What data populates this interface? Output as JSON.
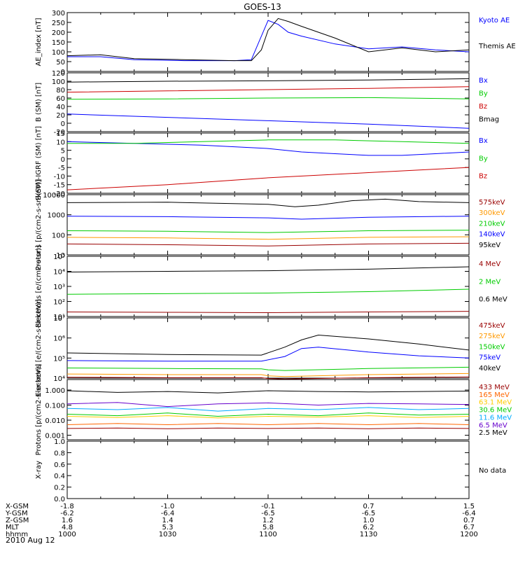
{
  "figure": {
    "title": "GOES-13",
    "date": "2010 Aug 12",
    "time_labels": [
      "1000",
      "1030",
      "1100",
      "1130",
      "1200"
    ]
  },
  "ephemeris": {
    "rows": [
      {
        "label": "X-GSM",
        "values": [
          "-1.8",
          "-1.0",
          "-0.1",
          "0.7",
          "1.5"
        ]
      },
      {
        "label": "Y-GSM",
        "values": [
          "-6.2",
          "-6.4",
          "-6.5",
          "-6.5",
          "-6.4"
        ]
      },
      {
        "label": "Z-GSM",
        "values": [
          "1.6",
          "1.4",
          "1.2",
          "1.0",
          "0.7"
        ]
      },
      {
        "label": "MLT",
        "values": [
          "4.8",
          "5.3",
          "5.8",
          "6.2",
          "6.7"
        ]
      },
      {
        "label": "hhmm",
        "values": [
          "1000",
          "1030",
          "1100",
          "1130",
          "1200"
        ]
      }
    ]
  },
  "chart_data": [
    {
      "type": "line",
      "ylabel": "AE_index [nT]",
      "ylim": [
        0,
        300
      ],
      "y_scale": "linear",
      "y_ticks": [
        {
          "v": 0,
          "t": "0"
        },
        {
          "v": 50,
          "t": "50"
        },
        {
          "v": 100,
          "t": "100"
        },
        {
          "v": 150,
          "t": "150"
        },
        {
          "v": 200,
          "t": "200"
        },
        {
          "v": 250,
          "t": "250"
        },
        {
          "v": 300,
          "t": "300"
        }
      ],
      "legend": [
        {
          "name": "Kyoto AE",
          "color": "#0000ff"
        },
        {
          "name": "Themis AE",
          "color": "#000000"
        }
      ],
      "series": [
        {
          "name": "Kyoto AE",
          "color": "#0000ff",
          "x": [
            1000,
            1010,
            1020,
            1035,
            1050,
            1055,
            1058,
            1100,
            1103,
            1106,
            1110,
            1120,
            1130,
            1140,
            1150,
            1200
          ],
          "y": [
            75,
            75,
            60,
            55,
            55,
            60,
            180,
            260,
            240,
            200,
            180,
            140,
            115,
            125,
            110,
            100
          ]
        },
        {
          "name": "Themis AE",
          "color": "#000000",
          "x": [
            1000,
            1010,
            1020,
            1035,
            1050,
            1055,
            1058,
            1100,
            1103,
            1106,
            1110,
            1120,
            1130,
            1140,
            1150,
            1200
          ],
          "y": [
            80,
            85,
            65,
            60,
            55,
            55,
            110,
            210,
            270,
            255,
            230,
            170,
            100,
            120,
            100,
            110
          ]
        }
      ]
    },
    {
      "type": "line",
      "ylabel": "B (SM) [nT]",
      "ylim": [
        -20,
        120
      ],
      "y_scale": "linear",
      "y_ticks": [
        {
          "v": -20,
          "t": "-20"
        },
        {
          "v": 0,
          "t": "0"
        },
        {
          "v": 20,
          "t": "20"
        },
        {
          "v": 40,
          "t": "40"
        },
        {
          "v": 60,
          "t": "60"
        },
        {
          "v": 80,
          "t": "80"
        },
        {
          "v": 100,
          "t": "100"
        },
        {
          "v": 120,
          "t": "120"
        }
      ],
      "legend": [
        {
          "name": "Bx",
          "color": "#0000ff"
        },
        {
          "name": "By",
          "color": "#00cc00"
        },
        {
          "name": "Bz",
          "color": "#cc0000"
        },
        {
          "name": "Bmag",
          "color": "#000000"
        }
      ],
      "series": [
        {
          "name": "Bx",
          "color": "#0000ff",
          "x": [
            1000,
            1030,
            1100,
            1130,
            1200
          ],
          "y": [
            22,
            14,
            6,
            -2,
            -12
          ]
        },
        {
          "name": "By",
          "color": "#00cc00",
          "x": [
            1000,
            1030,
            1100,
            1130,
            1200
          ],
          "y": [
            57,
            58,
            60,
            61,
            58
          ]
        },
        {
          "name": "Bz",
          "color": "#cc0000",
          "x": [
            1000,
            1030,
            1100,
            1130,
            1200
          ],
          "y": [
            74,
            77,
            80,
            83,
            87
          ]
        },
        {
          "name": "Bmag",
          "color": "#000000",
          "x": [
            1000,
            1030,
            1100,
            1130,
            1200
          ],
          "y": [
            98,
            100,
            101,
            103,
            106
          ]
        }
      ]
    },
    {
      "type": "line",
      "ylabel": "B(SM)-IGRF (SM) [nT]",
      "ylim": [
        -20,
        15
      ],
      "y_scale": "linear",
      "y_ticks": [
        {
          "v": -20,
          "t": "-20"
        },
        {
          "v": -15,
          "t": "-15"
        },
        {
          "v": -10,
          "t": "-10"
        },
        {
          "v": -5,
          "t": "-5"
        },
        {
          "v": 0,
          "t": "0"
        },
        {
          "v": 5,
          "t": "5"
        },
        {
          "v": 10,
          "t": "10"
        },
        {
          "v": 15,
          "t": "15"
        }
      ],
      "legend": [
        {
          "name": "Bx",
          "color": "#0000ff"
        },
        {
          "name": "By",
          "color": "#00cc00"
        },
        {
          "name": "Bz",
          "color": "#cc0000"
        }
      ],
      "series": [
        {
          "name": "Bx",
          "color": "#0000ff",
          "x": [
            1000,
            1020,
            1040,
            1100,
            1110,
            1120,
            1130,
            1140,
            1150,
            1200
          ],
          "y": [
            10,
            9,
            8,
            6,
            4,
            3,
            2,
            2,
            3,
            4
          ]
        },
        {
          "name": "By",
          "color": "#00cc00",
          "x": [
            1000,
            1020,
            1040,
            1100,
            1120,
            1140,
            1200
          ],
          "y": [
            9,
            9,
            10,
            11,
            11,
            10,
            9
          ]
        },
        {
          "name": "Bz",
          "color": "#cc0000",
          "x": [
            1000,
            1030,
            1100,
            1130,
            1200
          ],
          "y": [
            -18,
            -15,
            -11,
            -8,
            -5
          ]
        }
      ]
    },
    {
      "type": "line",
      "ylabel": "Protons [p/(cm2-s-sr-keV)]",
      "ylim": [
        10,
        10000
      ],
      "y_scale": "log",
      "y_ticks": [
        {
          "v": 10,
          "t": "10"
        },
        {
          "v": 100,
          "t": "100"
        },
        {
          "v": 1000,
          "t": "1000"
        },
        {
          "v": 10000,
          "t": "10000"
        }
      ],
      "legend": [
        {
          "name": "575keV",
          "color": "#990000"
        },
        {
          "name": "300keV",
          "color": "#ff9900"
        },
        {
          "name": "210keV",
          "color": "#00cc00"
        },
        {
          "name": "140keV",
          "color": "#0000ff"
        },
        {
          "name": "95keV",
          "color": "#000000"
        }
      ],
      "series": [
        {
          "name": "95keV",
          "color": "#000000",
          "x": [
            1000,
            1030,
            1100,
            1108,
            1115,
            1125,
            1135,
            1145,
            1200
          ],
          "y": [
            4000,
            4200,
            3300,
            2500,
            3000,
            5000,
            6000,
            4500,
            4000
          ]
        },
        {
          "name": "140keV",
          "color": "#0000ff",
          "x": [
            1000,
            1030,
            1100,
            1110,
            1130,
            1200
          ],
          "y": [
            850,
            800,
            700,
            600,
            750,
            850
          ]
        },
        {
          "name": "210keV",
          "color": "#00cc00",
          "x": [
            1000,
            1030,
            1100,
            1130,
            1200
          ],
          "y": [
            160,
            150,
            130,
            160,
            170
          ]
        },
        {
          "name": "300keV",
          "color": "#ff9900",
          "x": [
            1000,
            1030,
            1100,
            1130,
            1200
          ],
          "y": [
            75,
            70,
            60,
            75,
            80
          ]
        },
        {
          "name": "575keV",
          "color": "#990000",
          "x": [
            1000,
            1030,
            1100,
            1130,
            1200
          ],
          "y": [
            35,
            32,
            28,
            35,
            38
          ]
        }
      ]
    },
    {
      "type": "line",
      "ylabel": "Electrons [e/(cm2-s-sr)]",
      "ylim": [
        10,
        100000
      ],
      "y_scale": "log",
      "y_ticks": [
        {
          "v": 10,
          "t": "10¹"
        },
        {
          "v": 100,
          "t": "10²"
        },
        {
          "v": 1000,
          "t": "10³"
        },
        {
          "v": 10000,
          "t": "10⁴"
        },
        {
          "v": 100000,
          "t": "10⁵"
        }
      ],
      "legend": [
        {
          "name": "4 MeV",
          "color": "#990000"
        },
        {
          "name": "2 MeV",
          "color": "#00cc00"
        },
        {
          "name": "0.6 MeV",
          "color": "#000000"
        }
      ],
      "series": [
        {
          "name": "0.6 MeV",
          "color": "#000000",
          "x": [
            1000,
            1030,
            1100,
            1130,
            1200
          ],
          "y": [
            9000,
            10000,
            11000,
            14000,
            20000
          ]
        },
        {
          "name": "2 MeV",
          "color": "#00cc00",
          "x": [
            1000,
            1030,
            1100,
            1130,
            1200
          ],
          "y": [
            300,
            330,
            360,
            450,
            650
          ]
        },
        {
          "name": "4 MeV",
          "color": "#990000",
          "x": [
            1000,
            1030,
            1100,
            1130,
            1200
          ],
          "y": [
            20,
            19,
            18,
            20,
            22
          ]
        }
      ]
    },
    {
      "type": "line",
      "ylabel": "Electrons [e/(cm2-s-sr-keV)]",
      "ylim": [
        10000,
        10000000
      ],
      "y_scale": "log",
      "y_ticks": [
        {
          "v": 10000,
          "t": "10⁴"
        },
        {
          "v": 100000,
          "t": "10⁵"
        },
        {
          "v": 1000000,
          "t": "10⁶"
        },
        {
          "v": 10000000,
          "t": "10⁷"
        }
      ],
      "legend": [
        {
          "name": "475keV",
          "color": "#990000"
        },
        {
          "name": "275keV",
          "color": "#ff9900"
        },
        {
          "name": "150keV",
          "color": "#00cc00"
        },
        {
          "name": "75keV",
          "color": "#0000ff"
        },
        {
          "name": "40keV",
          "color": "#000000"
        }
      ],
      "series": [
        {
          "name": "40keV",
          "color": "#000000",
          "x": [
            1000,
            1030,
            1058,
            1105,
            1110,
            1115,
            1130,
            1145,
            1200
          ],
          "y": [
            180000,
            150000,
            140000,
            350000,
            800000,
            1400000,
            900000,
            500000,
            250000
          ]
        },
        {
          "name": "75keV",
          "color": "#0000ff",
          "x": [
            1000,
            1030,
            1058,
            1105,
            1110,
            1115,
            1130,
            1145,
            1200
          ],
          "y": [
            75000,
            70000,
            70000,
            120000,
            300000,
            350000,
            200000,
            130000,
            100000
          ]
        },
        {
          "name": "150keV",
          "color": "#00cc00",
          "x": [
            1000,
            1030,
            1058,
            1100,
            1105,
            1130,
            1200
          ],
          "y": [
            32000,
            30000,
            29000,
            26000,
            24000,
            30000,
            35000
          ]
        },
        {
          "name": "275keV",
          "color": "#ff9900",
          "x": [
            1000,
            1030,
            1058,
            1100,
            1105,
            1130,
            1200
          ],
          "y": [
            16000,
            15000,
            15000,
            13000,
            12000,
            15000,
            17000
          ]
        },
        {
          "name": "475keV",
          "color": "#990000",
          "x": [
            1000,
            1030,
            1058,
            1100,
            1105,
            1130,
            1200
          ],
          "y": [
            11000,
            10500,
            10500,
            9500,
            9000,
            10500,
            11500
          ]
        }
      ]
    },
    {
      "type": "line",
      "ylabel": "Protons [p/(cm2-s-sr-keV)]",
      "ylim": [
        0.0005,
        5
      ],
      "y_scale": "log",
      "y_ticks": [
        {
          "v": 0.001,
          "t": "0.001"
        },
        {
          "v": 0.01,
          "t": "0.010"
        },
        {
          "v": 0.1,
          "t": "0.100"
        },
        {
          "v": 1,
          "t": "1.000"
        }
      ],
      "legend": [
        {
          "name": "433 MeV",
          "color": "#990000"
        },
        {
          "name": "165 MeV",
          "color": "#ff6600"
        },
        {
          "name": "63.1 MeV",
          "color": "#ffcc00"
        },
        {
          "name": "30.6 MeV",
          "color": "#00cc00"
        },
        {
          "name": "11.6 MeV",
          "color": "#00aaff"
        },
        {
          "name": "6.5 MeV",
          "color": "#6600cc"
        },
        {
          "name": "2.5 MeV",
          "color": "#000000"
        }
      ],
      "series": [
        {
          "name": "2.5 MeV",
          "color": "#000000",
          "x": [
            1000,
            1015,
            1030,
            1045,
            1100,
            1115,
            1130,
            1145,
            1200
          ],
          "y": [
            0.9,
            0.7,
            0.8,
            0.65,
            0.9,
            0.8,
            0.75,
            0.8,
            0.85
          ]
        },
        {
          "name": "6.5 MeV",
          "color": "#6600cc",
          "x": [
            1000,
            1015,
            1030,
            1045,
            1100,
            1115,
            1130,
            1145,
            1200
          ],
          "y": [
            0.12,
            0.15,
            0.08,
            0.12,
            0.14,
            0.1,
            0.13,
            0.12,
            0.11
          ]
        },
        {
          "name": "11.6 MeV",
          "color": "#00aaff",
          "x": [
            1000,
            1015,
            1030,
            1045,
            1100,
            1115,
            1130,
            1145,
            1200
          ],
          "y": [
            0.06,
            0.05,
            0.07,
            0.04,
            0.06,
            0.05,
            0.07,
            0.05,
            0.06
          ]
        },
        {
          "name": "30.6 MeV",
          "color": "#00cc00",
          "x": [
            1000,
            1015,
            1030,
            1045,
            1100,
            1115,
            1130,
            1145,
            1200
          ],
          "y": [
            0.025,
            0.02,
            0.03,
            0.018,
            0.025,
            0.02,
            0.03,
            0.022,
            0.025
          ]
        },
        {
          "name": "63.1 MeV",
          "color": "#ffcc00",
          "x": [
            1000,
            1015,
            1030,
            1045,
            1100,
            1115,
            1130,
            1145,
            1200
          ],
          "y": [
            0.018,
            0.015,
            0.02,
            0.014,
            0.018,
            0.016,
            0.02,
            0.015,
            0.018
          ]
        },
        {
          "name": "165 MeV",
          "color": "#ff6600",
          "x": [
            1000,
            1015,
            1030,
            1045,
            1100,
            1115,
            1130,
            1145,
            1200
          ],
          "y": [
            0.005,
            0.006,
            0.005,
            0.006,
            0.005,
            0.006,
            0.005,
            0.006,
            0.005
          ]
        },
        {
          "name": "433 MeV",
          "color": "#990000",
          "x": [
            1000,
            1015,
            1030,
            1045,
            1100,
            1115,
            1130,
            1145,
            1200
          ],
          "y": [
            0.0028,
            0.003,
            0.0027,
            0.003,
            0.0028,
            0.003,
            0.0027,
            0.003,
            0.0028
          ]
        }
      ]
    },
    {
      "type": "line",
      "ylabel": "X-ray",
      "ylim": [
        0,
        1
      ],
      "y_scale": "linear",
      "y_ticks": [
        {
          "v": 0,
          "t": "0.0"
        },
        {
          "v": 0.2,
          "t": "0.2"
        },
        {
          "v": 0.4,
          "t": "0.4"
        },
        {
          "v": 0.6,
          "t": "0.6"
        },
        {
          "v": 0.8,
          "t": "0.8"
        },
        {
          "v": 1,
          "t": "1.0"
        }
      ],
      "legend": [],
      "note": "No data",
      "series": []
    }
  ]
}
